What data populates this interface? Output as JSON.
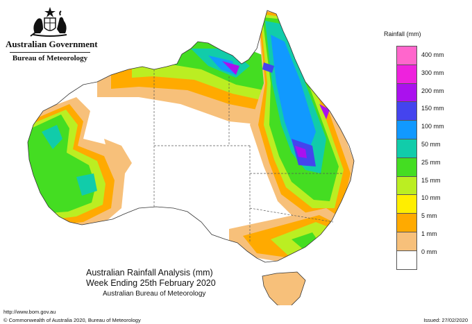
{
  "header": {
    "government": "Australian Government",
    "agency": "Bureau of Meteorology",
    "crest_icon": "coat-of-arms-icon"
  },
  "legend": {
    "title": "Rainfall (mm)",
    "items": [
      {
        "label": "400 mm",
        "color": "#ff66cc"
      },
      {
        "label": "300 mm",
        "color": "#ee22dd"
      },
      {
        "label": "200 mm",
        "color": "#aa11ee"
      },
      {
        "label": "150 mm",
        "color": "#4444ee"
      },
      {
        "label": "100 mm",
        "color": "#1199ff"
      },
      {
        "label": "50 mm",
        "color": "#11ccaa"
      },
      {
        "label": "25 mm",
        "color": "#44dd22"
      },
      {
        "label": "15 mm",
        "color": "#bbee22"
      },
      {
        "label": "10 mm",
        "color": "#ffee00"
      },
      {
        "label": "5 mm",
        "color": "#ffaa00"
      },
      {
        "label": "1 mm",
        "color": "#f7c07a"
      },
      {
        "label": "0 mm",
        "color": "#ffffff"
      }
    ]
  },
  "map": {
    "title": "Australian Rainfall Analysis (mm)",
    "subtitle": "Week Ending 25th February 2020",
    "org": "Australian Bureau of Meteorology"
  },
  "footer": {
    "url": "http://www.bom.gov.au",
    "copyright": "© Commonwealth of Australia 2020, Bureau of Meteorology",
    "issued": "Issued: 27/02/2020"
  }
}
